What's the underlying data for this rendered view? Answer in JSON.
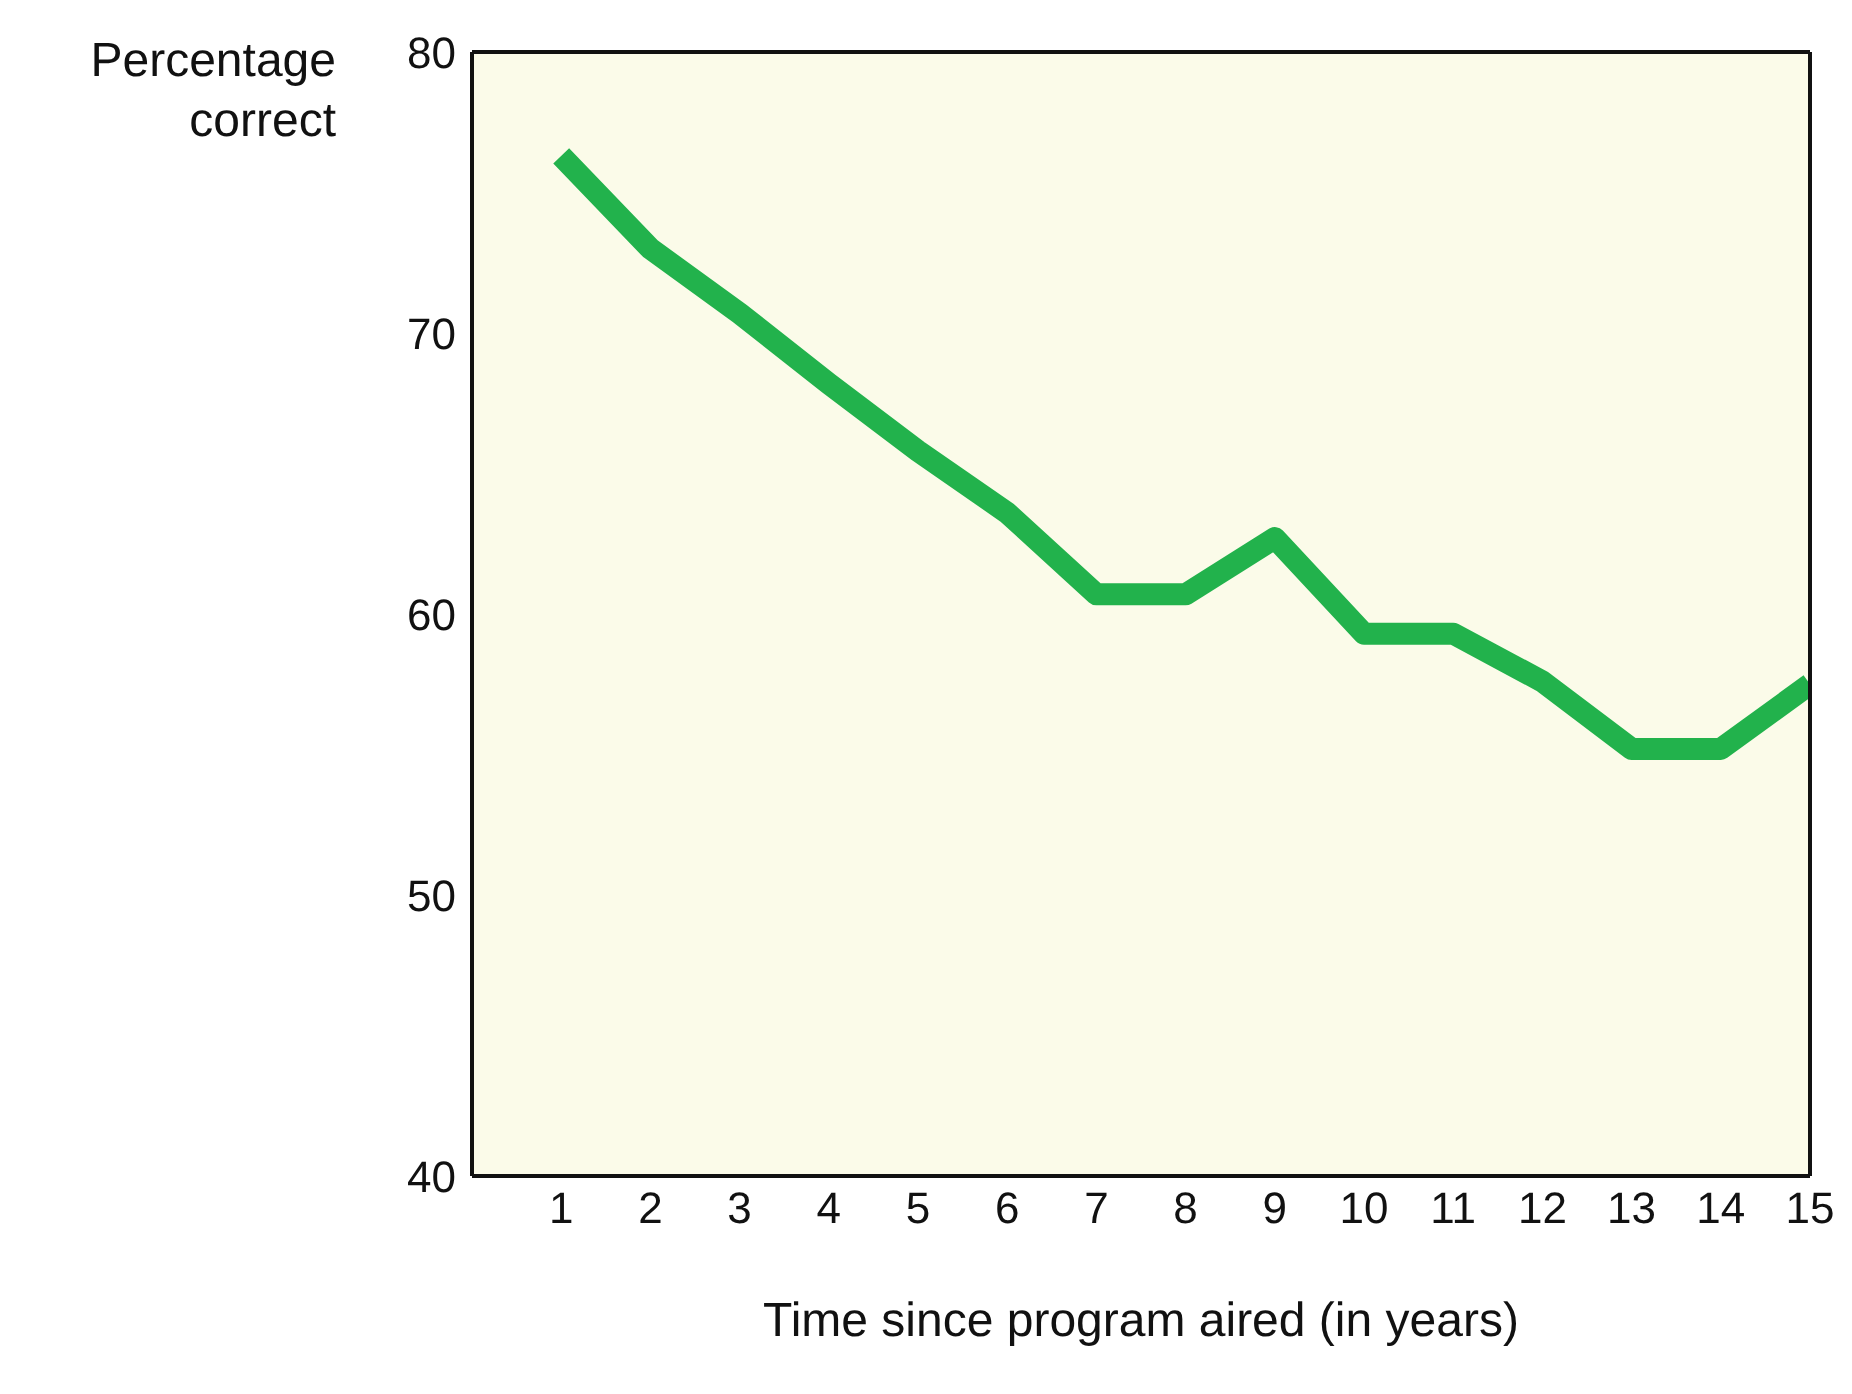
{
  "chart_data": {
    "type": "line",
    "ylabel": "Percentage correct",
    "xlabel": "Time since program aired (in years)",
    "x": [
      1,
      2,
      3,
      4,
      5,
      6,
      7,
      8,
      9,
      10,
      11,
      12,
      13,
      14,
      15
    ],
    "series": [
      {
        "color": "#22b24c",
        "values": [
          76.3,
          73,
          70.7,
          68.2,
          65.8,
          63.6,
          60.7,
          60.7,
          62.7,
          59.3,
          59.3,
          57.6,
          55.2,
          55.2,
          57.5
        ]
      }
    ],
    "xlim": [
      0,
      15
    ],
    "xticks": [
      1,
      2,
      3,
      4,
      5,
      6,
      7,
      8,
      9,
      10,
      11,
      12,
      13,
      14,
      15
    ],
    "ylim": [
      40,
      80
    ],
    "yticks": [
      40,
      50,
      60,
      70,
      80
    ],
    "grid": false,
    "legend": false,
    "marker": "none",
    "line_style": "solid"
  }
}
